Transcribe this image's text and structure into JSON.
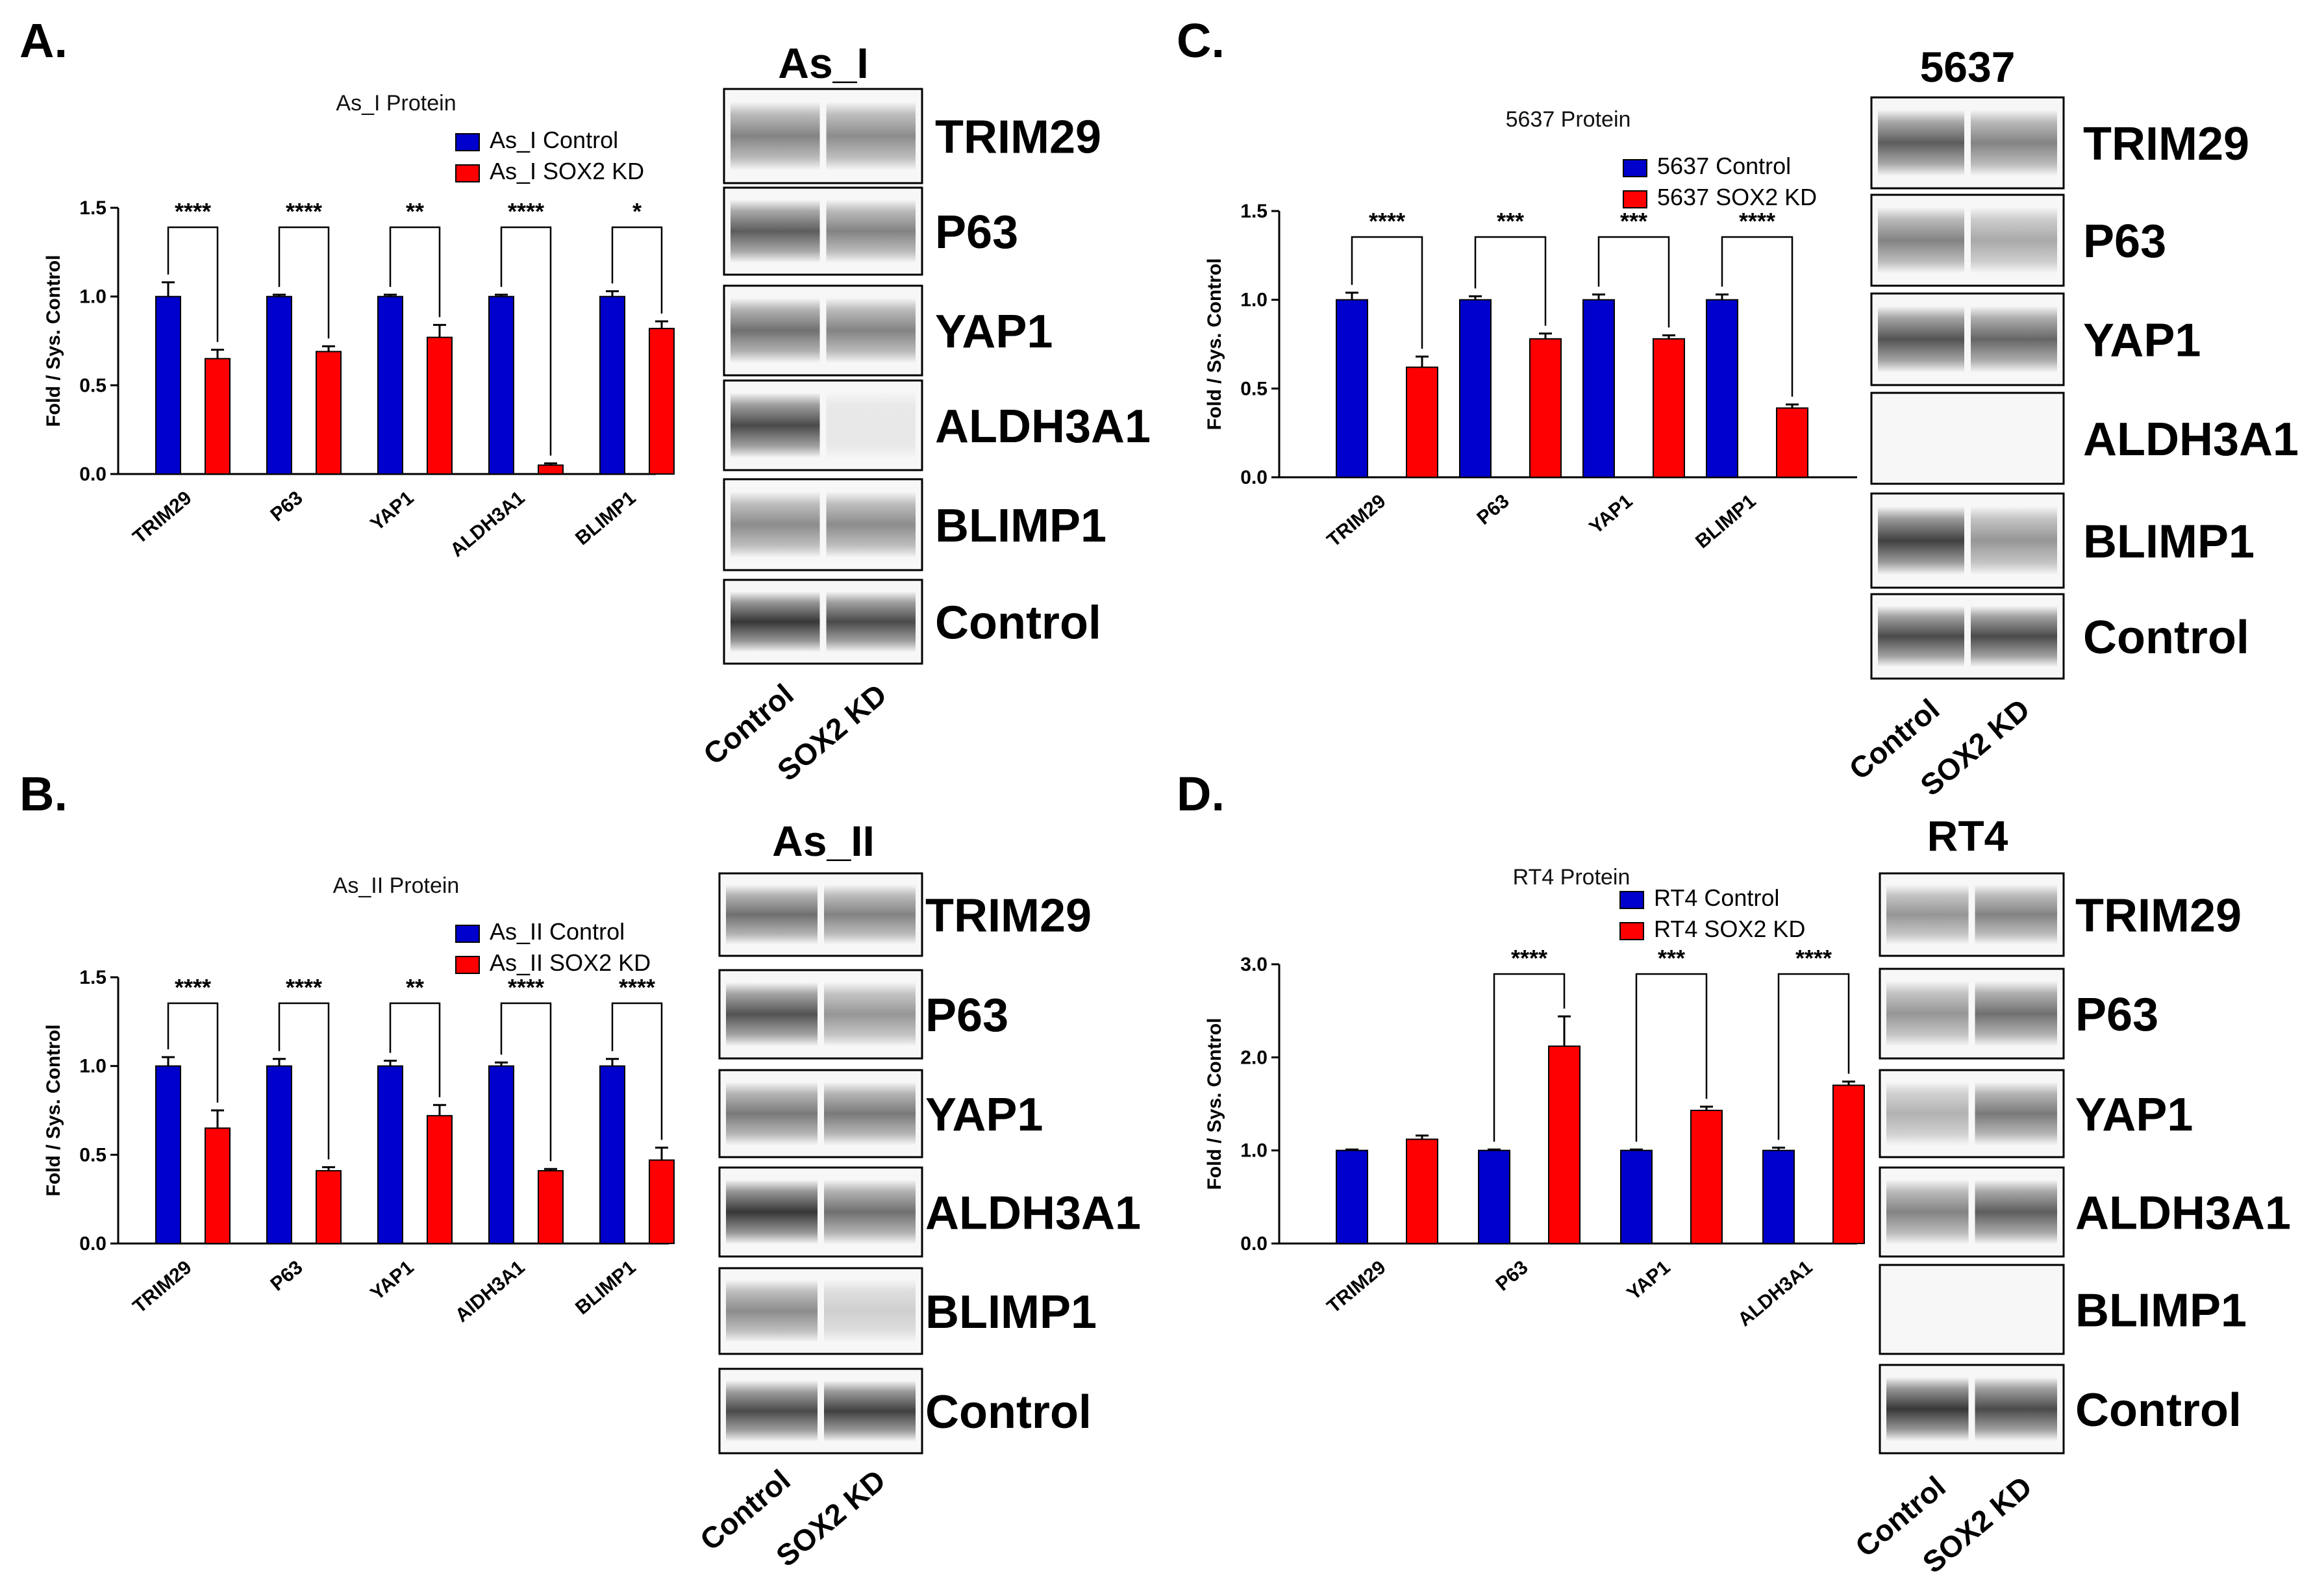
{
  "colors": {
    "control": "#0000cc",
    "kd": "#ff0000",
    "axis": "#000000"
  },
  "panels": [
    {
      "letter": "A.",
      "blot_title": "As_I",
      "lanes": [
        "Control",
        "SOX2 KD"
      ],
      "blots": [
        {
          "label": "TRIM29",
          "ctrl": 0.55,
          "kd": 0.5,
          "blank": false
        },
        {
          "label": "P63",
          "ctrl": 0.75,
          "kd": 0.55,
          "blank": false
        },
        {
          "label": "YAP1",
          "ctrl": 0.65,
          "kd": 0.55,
          "blank": false
        },
        {
          "label": "ALDH3A1",
          "ctrl": 0.85,
          "kd": 0.02,
          "blank": false
        },
        {
          "label": "BLIMP1",
          "ctrl": 0.5,
          "kd": 0.5,
          "blank": false
        },
        {
          "label": "Control",
          "ctrl": 0.95,
          "kd": 0.85,
          "blank": false
        }
      ]
    },
    {
      "letter": "B.",
      "blot_title": "As_II",
      "lanes": [
        "Control",
        "SOX2 KD"
      ],
      "blots": [
        {
          "label": "TRIM29",
          "ctrl": 0.65,
          "kd": 0.55,
          "blank": false
        },
        {
          "label": "P63",
          "ctrl": 0.8,
          "kd": 0.45,
          "blank": false
        },
        {
          "label": "YAP1",
          "ctrl": 0.6,
          "kd": 0.6,
          "blank": false
        },
        {
          "label": "ALDH3A1",
          "ctrl": 0.95,
          "kd": 0.65,
          "blank": false
        },
        {
          "label": "BLIMP1",
          "ctrl": 0.5,
          "kd": 0.15,
          "blank": false
        },
        {
          "label": "Control",
          "ctrl": 0.85,
          "kd": 0.9,
          "blank": false
        }
      ]
    },
    {
      "letter": "C.",
      "blot_title": "5637",
      "lanes": [
        "Control",
        "SOX2 KD"
      ],
      "blots": [
        {
          "label": "TRIM29",
          "ctrl": 0.75,
          "kd": 0.55,
          "blank": false
        },
        {
          "label": "P63",
          "ctrl": 0.55,
          "kd": 0.35,
          "blank": false
        },
        {
          "label": "YAP1",
          "ctrl": 0.8,
          "kd": 0.7,
          "blank": false
        },
        {
          "label": "ALDH3A1",
          "ctrl": 0.0,
          "kd": 0.0,
          "blank": true
        },
        {
          "label": "BLIMP1",
          "ctrl": 0.9,
          "kd": 0.45,
          "blank": false
        },
        {
          "label": "Control",
          "ctrl": 0.85,
          "kd": 0.85,
          "blank": false
        }
      ]
    },
    {
      "letter": "D.",
      "blot_title": "RT4",
      "lanes": [
        "Control",
        "SOX2 KD"
      ],
      "blots": [
        {
          "label": "TRIM29",
          "ctrl": 0.45,
          "kd": 0.55,
          "blank": false
        },
        {
          "label": "P63",
          "ctrl": 0.45,
          "kd": 0.65,
          "blank": false
        },
        {
          "label": "YAP1",
          "ctrl": 0.3,
          "kd": 0.6,
          "blank": false
        },
        {
          "label": "ALDH3A1",
          "ctrl": 0.55,
          "kd": 0.75,
          "blank": false
        },
        {
          "label": "BLIMP1",
          "ctrl": 0.0,
          "kd": 0.0,
          "blank": true
        },
        {
          "label": "Control",
          "ctrl": 0.95,
          "kd": 0.85,
          "blank": false
        }
      ]
    }
  ],
  "chart_data": [
    {
      "type": "bar",
      "title": "As_I Protein",
      "ylabel": "Fold / Sys. Control",
      "ylim": [
        0,
        1.5
      ],
      "yticks": [
        "0.0",
        "0.5",
        "1.0",
        "1.5"
      ],
      "categories": [
        "TRIM29",
        "P63",
        "YAP1",
        "ALDH3A1",
        "BLIMP1"
      ],
      "series": [
        {
          "name": "As_I Control",
          "values": [
            1.0,
            1.0,
            1.0,
            1.0,
            1.0
          ],
          "errors": [
            0.08,
            0.01,
            0.01,
            0.01,
            0.03
          ]
        },
        {
          "name": "As_I SOX2 KD",
          "values": [
            0.65,
            0.69,
            0.77,
            0.05,
            0.82
          ],
          "errors": [
            0.05,
            0.03,
            0.07,
            0.01,
            0.04
          ]
        }
      ],
      "significance": [
        "****",
        "****",
        "**",
        "****",
        "*"
      ]
    },
    {
      "type": "bar",
      "title": "As_II Protein",
      "ylabel": "Fold / Sys. Control",
      "ylim": [
        0,
        1.5
      ],
      "yticks": [
        "0.0",
        "0.5",
        "1.0",
        "1.5"
      ],
      "categories": [
        "TRIM29",
        "P63",
        "YAP1",
        "AlDH3A1",
        "BLIMP1"
      ],
      "series": [
        {
          "name": "As_II Control",
          "values": [
            1.0,
            1.0,
            1.0,
            1.0,
            1.0
          ],
          "errors": [
            0.05,
            0.04,
            0.03,
            0.02,
            0.04
          ]
        },
        {
          "name": "As_II SOX2 KD",
          "values": [
            0.65,
            0.41,
            0.72,
            0.41,
            0.47
          ],
          "errors": [
            0.1,
            0.02,
            0.06,
            0.01,
            0.07
          ]
        }
      ],
      "significance": [
        "****",
        "****",
        "**",
        "****",
        "****"
      ]
    },
    {
      "type": "bar",
      "title": "5637 Protein",
      "ylabel": "Fold / Sys. Control",
      "ylim": [
        0,
        1.5
      ],
      "yticks": [
        "0.0",
        "0.5",
        "1.0",
        "1.5"
      ],
      "categories": [
        "TRIM29",
        "P63",
        "YAP1",
        "BLIMP1"
      ],
      "series": [
        {
          "name": "5637 Control",
          "values": [
            1.0,
            1.0,
            1.0,
            1.0
          ],
          "errors": [
            0.04,
            0.02,
            0.03,
            0.03
          ]
        },
        {
          "name": "5637 SOX2 KD",
          "values": [
            0.62,
            0.78,
            0.78,
            0.39
          ],
          "errors": [
            0.06,
            0.03,
            0.02,
            0.02
          ]
        }
      ],
      "significance": [
        "****",
        "***",
        "***",
        "****"
      ]
    },
    {
      "type": "bar",
      "title": "RT4 Protein",
      "ylabel": "Fold / Sys. Control",
      "ylim": [
        0,
        3.0
      ],
      "yticks": [
        "0.0",
        "1.0",
        "2.0",
        "3.0"
      ],
      "categories": [
        "TRIM29",
        "P63",
        "YAP1",
        "ALDH3A1"
      ],
      "series": [
        {
          "name": "RT4 Control",
          "values": [
            1.0,
            1.0,
            1.0,
            1.0
          ],
          "errors": [
            0.01,
            0.01,
            0.01,
            0.03
          ]
        },
        {
          "name": "RT4 SOX2 KD",
          "values": [
            1.12,
            2.12,
            1.43,
            1.7
          ],
          "errors": [
            0.04,
            0.32,
            0.04,
            0.04
          ]
        }
      ],
      "significance": [
        "",
        "****",
        "***",
        "****"
      ]
    }
  ]
}
